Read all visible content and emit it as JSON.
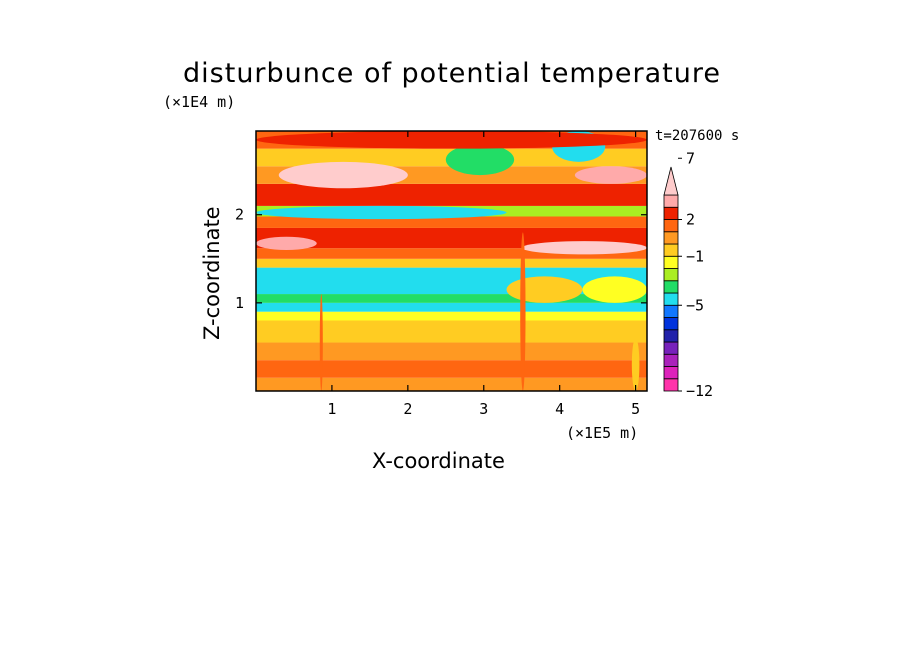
{
  "chart_data": {
    "type": "heatmap",
    "title": "disturbunce of potential temperature",
    "time_label": "t=207600 s",
    "xlabel": "X-coordinate",
    "ylabel": "Z-coordinate",
    "x_unit": "(×1E5 m)",
    "y_unit": "(×1E4 m)",
    "xlim": [
      0,
      5.15
    ],
    "ylim": [
      0,
      2.95
    ],
    "x_ticks": [
      1,
      2,
      3,
      4,
      5
    ],
    "y_ticks": [
      1,
      2
    ],
    "colorbar": {
      "labels": [
        {
          "value": 7,
          "text": "7"
        },
        {
          "value": 2,
          "text": "2"
        },
        {
          "value": -1,
          "text": "−1"
        },
        {
          "value": -5,
          "text": "−5"
        },
        {
          "value": -12,
          "text": "−12"
        }
      ],
      "levels": [
        {
          "color": "#ff33aa"
        },
        {
          "color": "#dd22bb"
        },
        {
          "color": "#aa22bb"
        },
        {
          "color": "#7722bb"
        },
        {
          "color": "#2222aa"
        },
        {
          "color": "#0033dd"
        },
        {
          "color": "#1177ff"
        },
        {
          "color": "#22ddee"
        },
        {
          "color": "#22dd66"
        },
        {
          "color": "#aaee22"
        },
        {
          "color": "#ffff22"
        },
        {
          "color": "#ffcc22"
        },
        {
          "color": "#ff9922"
        },
        {
          "color": "#ff6611"
        },
        {
          "color": "#ee2200"
        },
        {
          "color": "#ffaaaa"
        },
        {
          "color": "#ffcccc"
        }
      ]
    },
    "bands": [
      {
        "z": [
          0.0,
          0.15
        ],
        "value": 1
      },
      {
        "z": [
          0.15,
          0.35
        ],
        "value": 2
      },
      {
        "z": [
          0.35,
          0.55
        ],
        "value": 1
      },
      {
        "z": [
          0.55,
          0.8
        ],
        "value": 0
      },
      {
        "z": [
          0.8,
          0.9
        ],
        "value": -1
      },
      {
        "z": [
          0.9,
          1.0
        ],
        "value": -4
      },
      {
        "z": [
          1.0,
          1.1
        ],
        "value": -3
      },
      {
        "z": [
          1.1,
          1.4
        ],
        "value": -4
      },
      {
        "z": [
          1.4,
          1.5
        ],
        "value": 0
      },
      {
        "z": [
          1.5,
          1.62
        ],
        "value": 2
      },
      {
        "z": [
          1.62,
          1.85
        ],
        "value": 3
      },
      {
        "z": [
          1.85,
          1.98
        ],
        "value": 2
      },
      {
        "z": [
          1.98,
          2.1
        ],
        "value": -2
      },
      {
        "z": [
          2.1,
          2.35
        ],
        "value": 3
      },
      {
        "z": [
          2.35,
          2.55
        ],
        "value": 1
      },
      {
        "z": [
          2.55,
          2.75
        ],
        "value": 0
      },
      {
        "z": [
          2.75,
          2.95
        ],
        "value": 2
      }
    ],
    "features": [
      {
        "x": [
          0.0,
          3.3
        ],
        "z": [
          1.95,
          2.1
        ],
        "value": -4
      },
      {
        "x": [
          0.3,
          2.0
        ],
        "z": [
          2.3,
          2.6
        ],
        "value": 5
      },
      {
        "x": [
          0.7,
          1.3
        ],
        "z": [
          2.38,
          2.48
        ],
        "value": 7
      },
      {
        "x": [
          2.5,
          3.4
        ],
        "z": [
          2.45,
          2.8
        ],
        "value": -3
      },
      {
        "x": [
          3.9,
          4.6
        ],
        "z": [
          2.6,
          2.95
        ],
        "value": -4
      },
      {
        "x": [
          0.0,
          0.8
        ],
        "z": [
          1.6,
          1.75
        ],
        "value": 4
      },
      {
        "x": [
          3.5,
          5.15
        ],
        "z": [
          1.55,
          1.7
        ],
        "value": 5
      },
      {
        "x": [
          4.2,
          5.15
        ],
        "z": [
          2.35,
          2.55
        ],
        "value": 4
      },
      {
        "x": [
          0.0,
          5.15
        ],
        "z": [
          2.75,
          2.95
        ],
        "value": 3
      },
      {
        "x": [
          3.3,
          4.3
        ],
        "z": [
          1.0,
          1.3
        ],
        "value": 0
      },
      {
        "x": [
          4.3,
          5.15
        ],
        "z": [
          1.0,
          1.3
        ],
        "value": -1
      },
      {
        "x": [
          0.84,
          0.88
        ],
        "z": [
          0.0,
          1.1
        ],
        "value": 2
      },
      {
        "x": [
          3.48,
          3.55
        ],
        "z": [
          0.0,
          1.8
        ],
        "value": 2
      },
      {
        "x": [
          4.95,
          5.05
        ],
        "z": [
          0.0,
          0.6
        ],
        "value": 0
      }
    ]
  }
}
